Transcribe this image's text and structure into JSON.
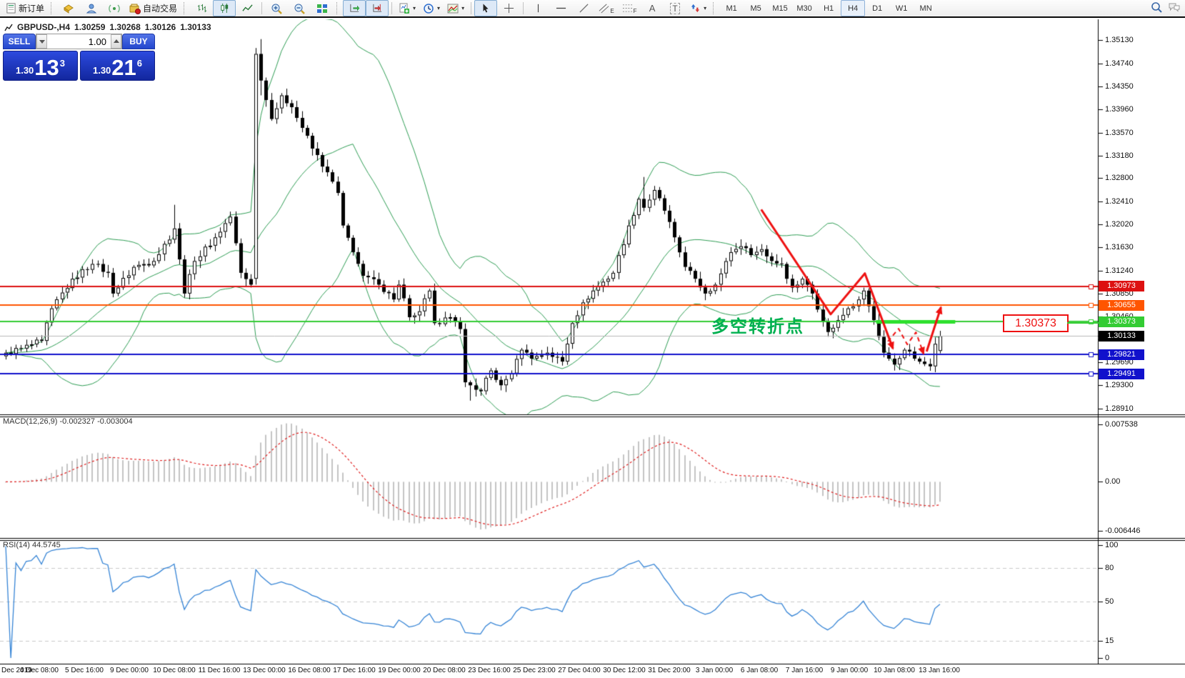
{
  "toolbar": {
    "new_order": "新订单",
    "auto_trading": "自动交易",
    "text_tool": "A",
    "label_tool": "T",
    "channel_sub": "E",
    "fibo_sub": "F",
    "caret": "▾",
    "timeframes": [
      "M1",
      "M5",
      "M15",
      "M30",
      "H1",
      "H4",
      "D1",
      "W1",
      "MN"
    ],
    "selected_timeframe": "H4"
  },
  "symbol_header": {
    "title": "GBPUSD-,H4",
    "open": "1.30259",
    "high": "1.30268",
    "low": "1.30126",
    "close": "1.30133"
  },
  "one_click": {
    "sell_label": "SELL",
    "buy_label": "BUY",
    "volume": "1.00",
    "sell_price_small": "1.30",
    "sell_price_big": "13",
    "sell_price_sup": "3",
    "buy_price_small": "1.30",
    "buy_price_big": "21",
    "buy_price_sup": "6"
  },
  "chart_data": {
    "type": "candlestick",
    "symbol": "GBPUSD-",
    "timeframe": "H4",
    "bars_total": 184,
    "price_axis": {
      "ylim": [
        1.28832,
        1.35473
      ],
      "ticks": [
        "1.35130",
        "1.34740",
        "1.34350",
        "1.33960",
        "1.33570",
        "1.33180",
        "1.32800",
        "1.32410",
        "1.32020",
        "1.31630",
        "1.31240",
        "1.30850",
        "1.30460",
        "1.30070",
        "1.29690",
        "1.29300",
        "1.28910"
      ]
    },
    "close_anchors": [
      [
        0,
        1.2985
      ],
      [
        3,
        1.2992
      ],
      [
        7,
        1.3005
      ],
      [
        9,
        1.306
      ],
      [
        13,
        1.311
      ],
      [
        17,
        1.3135
      ],
      [
        20,
        1.312
      ],
      [
        21,
        1.3085
      ],
      [
        25,
        1.313
      ],
      [
        29,
        1.314
      ],
      [
        33,
        1.3195
      ],
      [
        35,
        1.3085
      ],
      [
        37,
        1.314
      ],
      [
        41,
        1.318
      ],
      [
        44,
        1.3215
      ],
      [
        46,
        1.312
      ],
      [
        48,
        1.31
      ],
      [
        49,
        1.349
      ],
      [
        50,
        1.3445
      ],
      [
        52,
        1.338
      ],
      [
        54,
        1.342
      ],
      [
        56,
        1.34
      ],
      [
        58,
        1.3365
      ],
      [
        60,
        1.333
      ],
      [
        63,
        1.329
      ],
      [
        65,
        1.3255
      ],
      [
        66,
        1.32
      ],
      [
        68,
        1.3155
      ],
      [
        70,
        1.3115
      ],
      [
        73,
        1.31
      ],
      [
        76,
        1.3075
      ],
      [
        77,
        1.31
      ],
      [
        79,
        1.3045
      ],
      [
        81,
        1.3055
      ],
      [
        83,
        1.309
      ],
      [
        84,
        1.3035
      ],
      [
        87,
        1.3045
      ],
      [
        89,
        1.3025
      ],
      [
        90,
        1.2935
      ],
      [
        93,
        1.292
      ],
      [
        95,
        1.2955
      ],
      [
        97,
        1.293
      ],
      [
        99,
        1.295
      ],
      [
        101,
        1.299
      ],
      [
        103,
        1.2975
      ],
      [
        106,
        1.2985
      ],
      [
        109,
        1.297
      ],
      [
        111,
        1.3035
      ],
      [
        113,
        1.307
      ],
      [
        115,
        1.309
      ],
      [
        117,
        1.3105
      ],
      [
        119,
        1.312
      ],
      [
        122,
        1.32
      ],
      [
        124,
        1.3245
      ],
      [
        125,
        1.323
      ],
      [
        127,
        1.326
      ],
      [
        129,
        1.3225
      ],
      [
        131,
        1.318
      ],
      [
        133,
        1.313
      ],
      [
        135,
        1.311
      ],
      [
        137,
        1.3085
      ],
      [
        139,
        1.31
      ],
      [
        142,
        1.3155
      ],
      [
        144,
        1.3165
      ],
      [
        146,
        1.315
      ],
      [
        148,
        1.316
      ],
      [
        150,
        1.314
      ],
      [
        152,
        1.3135
      ],
      [
        154,
        1.3095
      ],
      [
        156,
        1.311
      ],
      [
        158,
        1.3085
      ],
      [
        161,
        1.302
      ],
      [
        163,
        1.304
      ],
      [
        165,
        1.306
      ],
      [
        167,
        1.3075
      ],
      [
        168,
        1.309
      ],
      [
        170,
        1.304
      ],
      [
        172,
        1.2985
      ],
      [
        174,
        1.2965
      ],
      [
        176,
        1.299
      ],
      [
        178,
        1.2975
      ],
      [
        179,
        1.297
      ],
      [
        181,
        1.2962
      ],
      [
        182,
        1.3
      ],
      [
        183,
        1.30133
      ]
    ],
    "overrides": {
      "33": {
        "h": 1.3235
      },
      "49": {
        "o": 1.311,
        "c": 1.349,
        "h": 1.35,
        "l": 1.31
      },
      "50": {
        "o": 1.349,
        "c": 1.3445,
        "h": 1.3515,
        "l": 1.342
      },
      "91": {
        "l": 1.2904
      },
      "125": {
        "h": 1.3282
      },
      "183": {
        "o": 1.2988,
        "c": 1.30133,
        "h": 1.3022,
        "l": 1.2984
      }
    },
    "bollinger": {
      "period": 20,
      "deviation": 2,
      "color": "#2f9e55"
    },
    "levels": [
      {
        "price": 1.30973,
        "label": "1.30973",
        "color": "#dd1111"
      },
      {
        "price": 1.30655,
        "label": "1.30655",
        "color": "#ff5500"
      },
      {
        "price": 1.30373,
        "label": "1.30373",
        "color": "#33cc33"
      },
      {
        "price": 1.29821,
        "label": "1.29821",
        "color": "#1111cc"
      },
      {
        "price": 1.29491,
        "label": "1.29491",
        "color": "#1111cc"
      }
    ],
    "bid": {
      "price": 1.30133,
      "label": "1.30133",
      "line_color": "#b8b8b8",
      "tag_color": "#000000"
    },
    "annotations": {
      "text": {
        "label": "多空转折点",
        "color": "#00b050"
      },
      "callout": {
        "label": "1.30373",
        "color": "#ee1111",
        "connector_color": "#33cc33"
      },
      "green_segment": {
        "price": 1.30373,
        "bar_from": 170.5,
        "bar_to": 186,
        "color": "#2ee02e"
      },
      "red_color": "#ee1111",
      "red_zigzag": [
        [
          148,
          1.3227
        ],
        [
          161.6,
          1.305
        ],
        [
          168.3,
          1.3119
        ],
        [
          173.8,
          1.2992
        ]
      ],
      "red_dashed": [
        [
          172.8,
          1.3004
        ],
        [
          174.9,
          1.30256
        ],
        [
          176.6,
          1.2999
        ],
        [
          178.3,
          1.30196
        ],
        [
          179.8,
          1.29833
        ]
      ],
      "red_arrow": [
        [
          180.4,
          1.2987
        ],
        [
          183.2,
          1.30618
        ]
      ]
    },
    "macd": {
      "label": "MACD(12,26,9)",
      "values_label": "-0.002327 -0.003004",
      "fast": 12,
      "slow": 26,
      "signal": 9,
      "current": -0.002327,
      "current_signal": -0.003004,
      "ticks": [
        "0.007538",
        "0.00",
        "-0.006446"
      ],
      "tick_values": [
        0.007538,
        0,
        -0.006446
      ],
      "hist_color": "#c4c4c4",
      "signal_color": "#e02020"
    },
    "rsi": {
      "label": "RSI(14)",
      "value_label": "44.5745",
      "period": 14,
      "current": 44.5745,
      "ticks": [
        "100",
        "80",
        "50",
        "15",
        "0"
      ],
      "tick_values": [
        100,
        80,
        50,
        15,
        0
      ],
      "levels": [
        80,
        50,
        15
      ],
      "color": "#3584d6"
    },
    "time_labels": [
      "Dec 2019",
      "4 Dec 08:00",
      "5 Dec 16:00",
      "9 Dec 00:00",
      "10 Dec 08:00",
      "11 Dec 16:00",
      "13 Dec 00:00",
      "16 Dec 08:00",
      "17 Dec 16:00",
      "19 Dec 00:00",
      "20 Dec 08:00",
      "23 Dec 16:00",
      "25 Dec 23:00",
      "27 Dec 04:00",
      "30 Dec 12:00",
      "31 Dec 20:00",
      "3 Jan 00:00",
      "6 Jan 08:00",
      "7 Jan 16:00",
      "9 Jan 00:00",
      "10 Jan 08:00",
      "13 Jan 16:00"
    ]
  }
}
